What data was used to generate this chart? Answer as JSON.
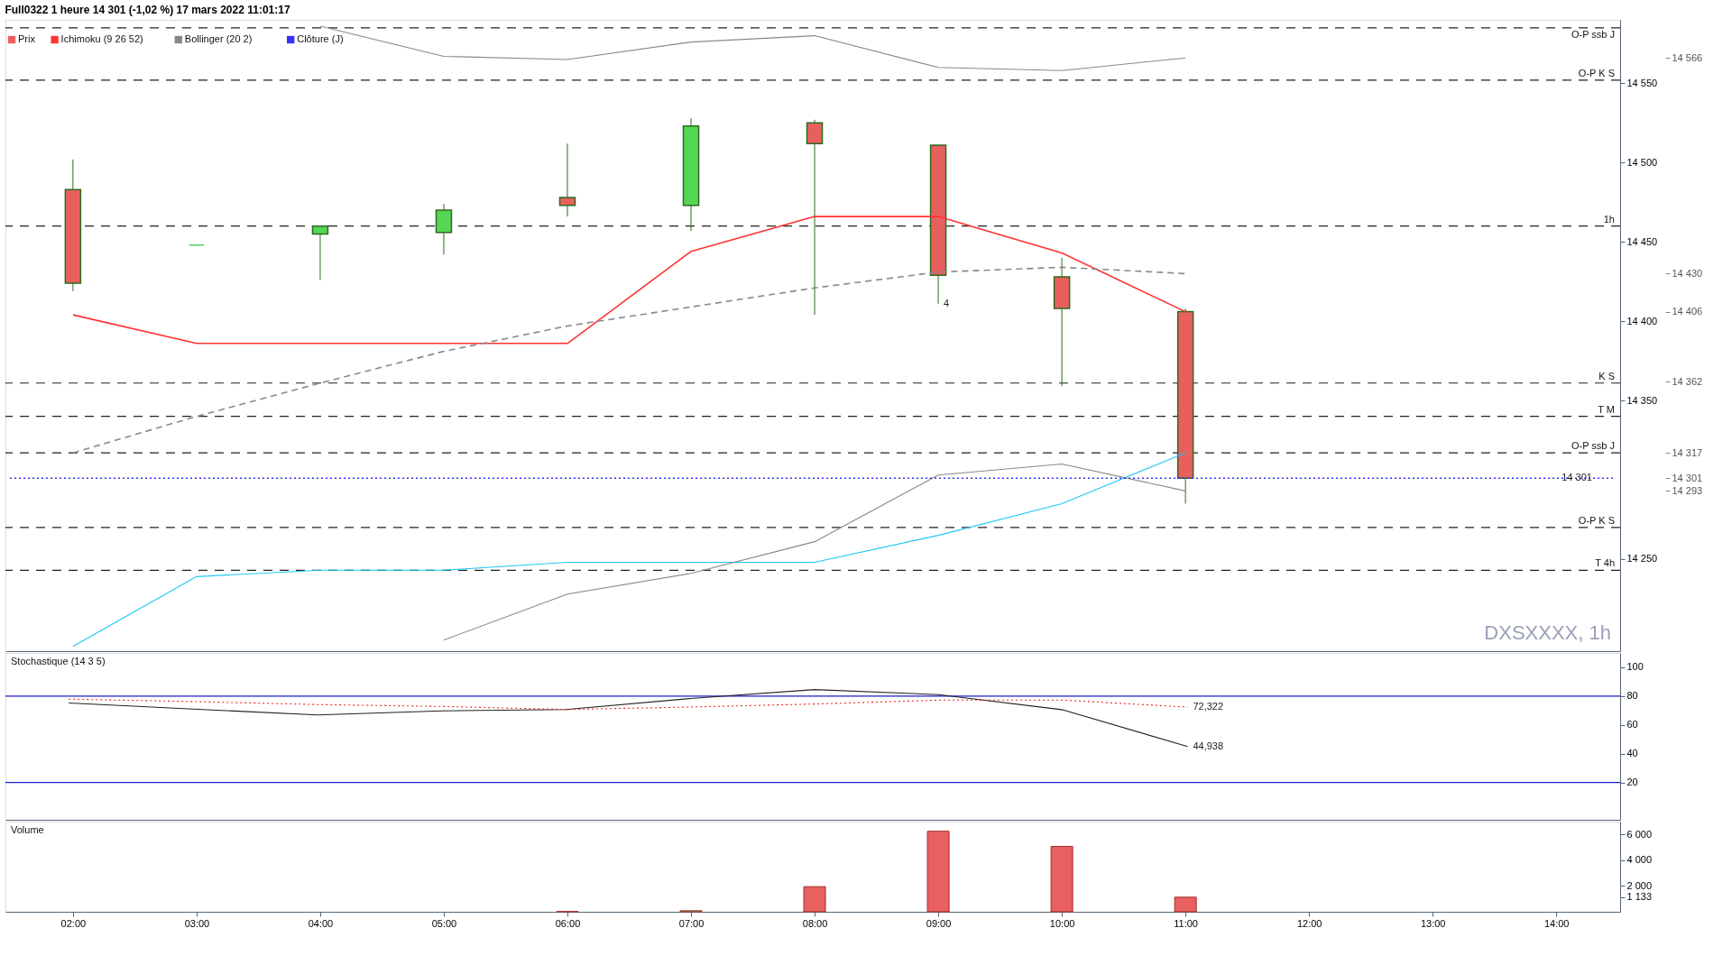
{
  "chart_data": [
    {
      "type": "candlestick",
      "title": "Full0322 1 heure 14 301 (-1,02 %) 17 mars 2022 11:01:17",
      "xlim": [
        1.49,
        14.48
      ],
      "ylim": [
        14192,
        14590
      ],
      "tick_labels": "y",
      "legend": "top left",
      "yticks": [
        {
          "value": 14250,
          "label": "14 250"
        },
        {
          "value": 14350,
          "label": "14 350"
        },
        {
          "value": 14400,
          "label": "14 400"
        },
        {
          "value": 14450,
          "label": "14 450"
        },
        {
          "value": 14500,
          "label": "14 500"
        },
        {
          "value": 14550,
          "label": "14 550"
        }
      ],
      "series": [
        {
          "name": "Prix",
          "type": "candlestick",
          "x": [
            2,
            3,
            4,
            5,
            6,
            7,
            8,
            9,
            10,
            11
          ],
          "ohlc": [
            [
              14483,
              14502,
              14419,
              14424
            ],
            [
              14448,
              14448,
              14448,
              14448
            ],
            [
              14455,
              14460,
              14426,
              14460
            ],
            [
              14456,
              14474,
              14442,
              14470
            ],
            [
              14478,
              14512,
              14466,
              14473
            ],
            [
              14473,
              14528,
              14457,
              14523
            ],
            [
              14525,
              14527,
              14404,
              14512
            ],
            [
              14511,
              14511,
              14411,
              14429
            ],
            [
              14428,
              14440,
              14359,
              14408
            ],
            [
              14406,
              14408,
              14285,
              14301
            ]
          ],
          "colors": [
            "#e8605e",
            "#55d655",
            "#55d655",
            "#55d655",
            "#e8605e",
            "#55d655",
            "#e8605e",
            "#e8605e",
            "#e8605e",
            "#e8605e"
          ]
        },
        {
          "name": "Ichimoku (9 26 52)",
          "type": "line",
          "color": "#ff3333",
          "x": [
            2,
            3,
            4,
            5,
            6,
            7,
            8,
            9,
            10,
            11
          ],
          "values": [
            14404,
            14386,
            14386,
            14386,
            14386,
            14444,
            14466,
            14466,
            14443,
            14406
          ]
        },
        {
          "type": "line",
          "color": "#1ec8f5",
          "x": [
            2,
            3,
            4,
            5,
            6,
            7,
            8,
            9,
            10,
            11
          ],
          "values": [
            14195,
            14239,
            14243,
            14243,
            14248,
            14248,
            14248,
            14265,
            14285,
            14317
          ]
        },
        {
          "name": "Bollinger (20 2)",
          "type": "line",
          "color": "#888888",
          "line_style": "dashed",
          "x": [
            2,
            3,
            4,
            5,
            6,
            7,
            8,
            9,
            10,
            11
          ],
          "values": [
            14317,
            14340,
            14361,
            14381,
            14397,
            14409,
            14421,
            14431,
            14434,
            14430
          ]
        },
        {
          "type": "line",
          "color": "#888888",
          "x": [
            5,
            6,
            7,
            8,
            9,
            10,
            11
          ],
          "values": [
            14199,
            14228,
            14241,
            14261,
            14303,
            14310,
            14293
          ]
        },
        {
          "type": "line",
          "color": "#888888",
          "x": [
            4,
            5,
            6,
            7,
            8,
            9,
            10,
            11
          ],
          "values": [
            14586,
            14567,
            14565,
            14576,
            14580,
            14560,
            14558,
            14566
          ]
        },
        {
          "name": "Clôture (J)",
          "type": "line",
          "color": "#3333ff",
          "line_style": "dotted",
          "x": [
            1.49,
            14.48
          ],
          "values": [
            14301,
            14301
          ]
        }
      ],
      "ref_lines": [
        {
          "axis": "y",
          "value": 14585,
          "label": "O-P ssb J"
        },
        {
          "axis": "y",
          "value": 14552,
          "label": "O-P K S"
        },
        {
          "axis": "y",
          "value": 14460,
          "label": "1h"
        },
        {
          "axis": "y",
          "value": 14361,
          "label": "K S"
        },
        {
          "axis": "y",
          "value": 14340,
          "label": "T M"
        },
        {
          "axis": "y",
          "value": 14317,
          "label": "O-P ssb J"
        },
        {
          "axis": "y",
          "value": 14270,
          "label": "O-P K S"
        },
        {
          "axis": "y",
          "value": 14243,
          "label": "T 4h"
        }
      ],
      "annotations": [
        {
          "text": "4",
          "x": 9,
          "y": 14411
        },
        {
          "text": "14 301",
          "x": 14.0,
          "y": 14301
        },
        "DXSXXXX, 1h"
      ],
      "y2lim": [
        14192,
        14590
      ],
      "y2ticks": [
        {
          "value": 14566,
          "label": "14 566"
        },
        {
          "value": 14430,
          "label": "14 430"
        },
        {
          "value": 14406,
          "label": "14 406"
        },
        {
          "value": 14362,
          "label": "14 362"
        },
        {
          "value": 14317,
          "label": "14 317"
        },
        {
          "value": 14301,
          "label": "14 301"
        },
        {
          "value": 14293,
          "label": "14 293"
        }
      ]
    },
    {
      "type": "line",
      "title": "Stochastique (14 3 5)",
      "xlim": [
        1.49,
        14.48
      ],
      "ylim": [
        -6,
        110
      ],
      "yticks": [
        20,
        40,
        60,
        80,
        100
      ],
      "tick_labels": "y",
      "series": [
        {
          "type": "line",
          "color": "#222222",
          "x": [
            2,
            3,
            4,
            5,
            6,
            7,
            8,
            9,
            10,
            11
          ],
          "values": [
            75.2,
            71,
            66.9,
            69.7,
            70.7,
            78.3,
            84.5,
            81,
            70.4,
            44.938
          ]
        },
        {
          "type": "line",
          "color": "#ee2222",
          "line_style": "dotted",
          "x": [
            2,
            3,
            4,
            5,
            6,
            7,
            8,
            9,
            10,
            11
          ],
          "values": [
            77.9,
            76.2,
            74.1,
            72.8,
            70.7,
            72.4,
            74.5,
            77.2,
            77.2,
            72.322
          ]
        }
      ],
      "ref_lines": [
        {
          "axis": "y",
          "value": 80,
          "color": "#1a1acc",
          "line_style": "solid"
        },
        {
          "axis": "y",
          "value": 20,
          "color": "#1a1acc",
          "line_style": "solid"
        }
      ],
      "annotations": [
        {
          "text": "72,322",
          "x": 11,
          "y": 72.322
        },
        {
          "text": "44,938",
          "x": 11,
          "y": 44.938
        }
      ]
    },
    {
      "type": "bar",
      "title": "Volume",
      "xlim": [
        1.49,
        14.48
      ],
      "ylim": [
        0,
        7000
      ],
      "yticks": [
        {
          "value": 1133,
          "label": "1 133"
        },
        {
          "value": 2000,
          "label": "2 000"
        },
        {
          "value": 4000,
          "label": "4 000"
        },
        {
          "value": 6000,
          "label": "6 000"
        }
      ],
      "xticks": [
        {
          "value": 2,
          "label": "02:00"
        },
        {
          "value": 3,
          "label": "03:00"
        },
        {
          "value": 4,
          "label": "04:00"
        },
        {
          "value": 5,
          "label": "05:00"
        },
        {
          "value": 6,
          "label": "06:00"
        },
        {
          "value": 7,
          "label": "07:00"
        },
        {
          "value": 8,
          "label": "08:00"
        },
        {
          "value": 9,
          "label": "09:00"
        },
        {
          "value": 10,
          "label": "10:00"
        },
        {
          "value": 11,
          "label": "11:00"
        },
        {
          "value": 12,
          "label": "12:00"
        },
        {
          "value": 13,
          "label": "13:00"
        },
        {
          "value": 14,
          "label": "14:00"
        }
      ],
      "x": [
        6,
        7,
        8,
        9,
        10,
        11
      ],
      "values": [
        20,
        80,
        1950,
        6250,
        5070,
        1133
      ],
      "colors": [
        "#55d655",
        "#55d655",
        "#e86060",
        "#e86060",
        "#e86060",
        "#e86060"
      ],
      "legend": false
    }
  ]
}
